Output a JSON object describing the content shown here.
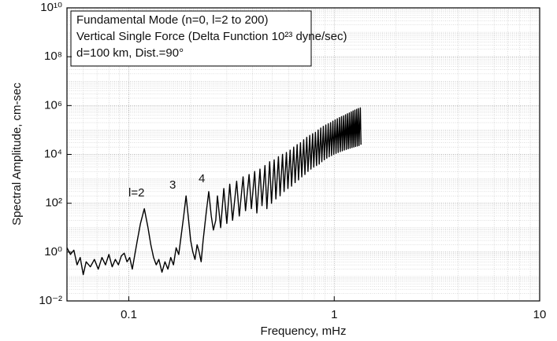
{
  "chart_data": {
    "type": "line",
    "title_lines": [
      "Fundamental Mode (n=0, l=2 to 200)",
      "Vertical Single Force  (Delta Function 10²³ dyne/sec)",
      "d=100 km,    Dist.=90°"
    ],
    "mode_labels": [
      "l=2",
      "3",
      "4"
    ],
    "xlabel": "Frequency,  mHz",
    "ylabel": "Spectral Amplitude, cm-sec",
    "xscale": "log",
    "yscale": "log",
    "grid": true,
    "minor_grid": true,
    "color": "#000000",
    "xlim": [
      0.05,
      10
    ],
    "xticks": [
      0.1,
      1,
      10
    ],
    "ylim": [
      0.01,
      10000000000
    ],
    "yticks": [
      {
        "value": 0.01,
        "label": "10⁻²"
      },
      {
        "value": 1,
        "label": "10⁰"
      },
      {
        "value": 100,
        "label": "10²"
      },
      {
        "value": 10000,
        "label": "10⁴"
      },
      {
        "value": 1000000,
        "label": "10⁶"
      },
      {
        "value": 100000000,
        "label": "10⁸"
      },
      {
        "value": 10000000000,
        "label": "10¹⁰"
      }
    ],
    "x": [
      0.05,
      0.052,
      0.054,
      0.056,
      0.058,
      0.06,
      0.062,
      0.065,
      0.068,
      0.071,
      0.074,
      0.077,
      0.08,
      0.083,
      0.086,
      0.089,
      0.092,
      0.095,
      0.098,
      0.101,
      0.104,
      0.107,
      0.11,
      0.114,
      0.119,
      0.124,
      0.128,
      0.132,
      0.136,
      0.14,
      0.145,
      0.15,
      0.155,
      0.16,
      0.165,
      0.17,
      0.175,
      0.18,
      0.185,
      0.19,
      0.195,
      0.2,
      0.205,
      0.21,
      0.215,
      0.22,
      0.225,
      0.23,
      0.238,
      0.245,
      0.252,
      0.258,
      0.265,
      0.27,
      0.28,
      0.29,
      0.3,
      0.31,
      0.32,
      0.335,
      0.345,
      0.36,
      0.37,
      0.385,
      0.395,
      0.41,
      0.42,
      0.435,
      0.445,
      0.46,
      0.47,
      0.485,
      0.495,
      0.51,
      0.52,
      0.535,
      0.545,
      0.56,
      0.57,
      0.585,
      0.595,
      0.61,
      0.62,
      0.635,
      0.645,
      0.66,
      0.67,
      0.685,
      0.695,
      0.71,
      0.72,
      0.735,
      0.745,
      0.76,
      0.77,
      0.785,
      0.795,
      0.81,
      0.82,
      0.835,
      0.845,
      0.86,
      0.87,
      0.885,
      0.895,
      0.91,
      0.92,
      0.935,
      0.945,
      0.96,
      0.97,
      0.985,
      0.995,
      1.01,
      1.02,
      1.035,
      1.045,
      1.06,
      1.07,
      1.085,
      1.095,
      1.11,
      1.12,
      1.135,
      1.145,
      1.16,
      1.17,
      1.185,
      1.195,
      1.21,
      1.22,
      1.235,
      1.245,
      1.26,
      1.27,
      1.285,
      1.295,
      1.31,
      1.32,
      1.34,
      1.35
    ],
    "values": [
      1.5,
      0.8,
      1.2,
      0.3,
      0.6,
      0.12,
      0.4,
      0.25,
      0.5,
      0.2,
      0.6,
      0.3,
      0.8,
      0.25,
      0.5,
      0.3,
      0.7,
      0.9,
      0.4,
      0.6,
      0.2,
      0.8,
      3,
      15,
      60,
      10,
      2,
      0.6,
      0.3,
      0.5,
      0.15,
      0.4,
      0.2,
      0.6,
      0.3,
      1.5,
      0.8,
      5,
      30,
      200,
      25,
      3,
      1,
      0.5,
      2,
      1,
      0.4,
      3,
      40,
      300,
      30,
      8,
      20,
      200,
      10,
      400,
      15,
      600,
      20,
      800,
      30,
      1200,
      50,
      1500,
      60,
      2000,
      40,
      2500,
      80,
      3500,
      60,
      5000,
      100,
      6000,
      150,
      8000,
      200,
      10000,
      300,
      12000,
      400,
      15000,
      500,
      20000,
      700,
      25000,
      900,
      30000,
      1200,
      40000,
      1500,
      50000,
      2000,
      60000,
      2500,
      70000,
      3000,
      80000,
      3500,
      100000,
      4000,
      120000,
      5000,
      140000,
      6000,
      160000,
      7000,
      180000,
      8000,
      200000,
      9000,
      230000,
      10000,
      260000,
      11000,
      290000,
      12000,
      320000,
      13000,
      350000,
      14000,
      380000,
      15000,
      420000,
      16000,
      460000,
      17000,
      500000,
      18000,
      550000,
      19000,
      600000,
      20000,
      650000,
      21000,
      700000,
      22000,
      750000,
      23000,
      800000,
      25000
    ]
  }
}
